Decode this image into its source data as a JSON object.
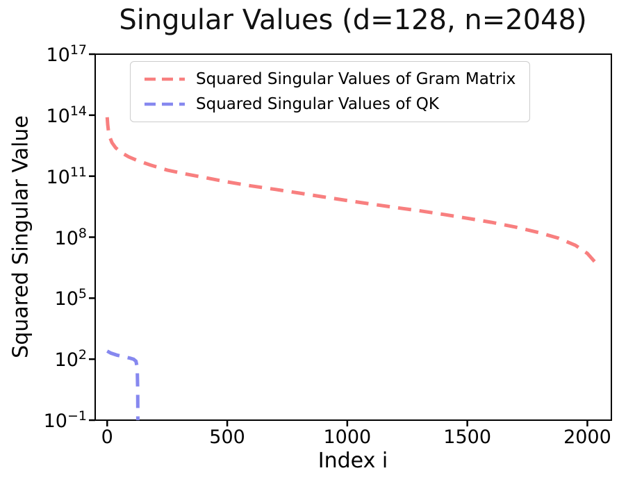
{
  "chart_data": {
    "type": "line",
    "title": "Singular Values (d=128, n=2048)",
    "xlabel": "Index i",
    "ylabel": "Squared Singular Value",
    "yscale": "log",
    "grid": false,
    "legend_position": "upper left",
    "xlim": [
      -50,
      2100
    ],
    "ylim_exponents": [
      -1,
      17
    ],
    "x_ticks": [
      0,
      500,
      1000,
      1500,
      2000
    ],
    "y_tick_exponents": [
      17,
      14,
      11,
      8,
      5,
      2,
      -1
    ],
    "series": [
      {
        "name": "Squared Singular Values of Gram Matrix",
        "color": "#f87f7f",
        "linestyle": "dashed",
        "points_log10": [
          [
            0,
            13.9
          ],
          [
            2,
            13.55
          ],
          [
            5,
            13.25
          ],
          [
            10,
            12.95
          ],
          [
            20,
            12.65
          ],
          [
            35,
            12.4
          ],
          [
            60,
            12.15
          ],
          [
            90,
            11.95
          ],
          [
            130,
            11.75
          ],
          [
            180,
            11.55
          ],
          [
            250,
            11.3
          ],
          [
            330,
            11.1
          ],
          [
            420,
            10.9
          ],
          [
            500,
            10.72
          ],
          [
            600,
            10.52
          ],
          [
            700,
            10.35
          ],
          [
            800,
            10.17
          ],
          [
            900,
            9.98
          ],
          [
            1000,
            9.8
          ],
          [
            1100,
            9.63
          ],
          [
            1200,
            9.46
          ],
          [
            1300,
            9.3
          ],
          [
            1400,
            9.12
          ],
          [
            1500,
            8.93
          ],
          [
            1600,
            8.73
          ],
          [
            1700,
            8.5
          ],
          [
            1800,
            8.22
          ],
          [
            1880,
            7.95
          ],
          [
            1950,
            7.6
          ],
          [
            2000,
            7.2
          ],
          [
            2030,
            6.8
          ],
          [
            2047,
            6.45
          ]
        ]
      },
      {
        "name": "Squared Singular Values of QK",
        "color": "#8688ef",
        "linestyle": "dashed",
        "points_log10": [
          [
            0,
            2.4
          ],
          [
            15,
            2.3
          ],
          [
            40,
            2.2
          ],
          [
            70,
            2.12
          ],
          [
            95,
            2.05
          ],
          [
            110,
            2.0
          ],
          [
            120,
            1.9
          ],
          [
            125,
            1.6
          ],
          [
            127,
            0.5
          ],
          [
            128,
            -1.3
          ]
        ]
      }
    ]
  }
}
